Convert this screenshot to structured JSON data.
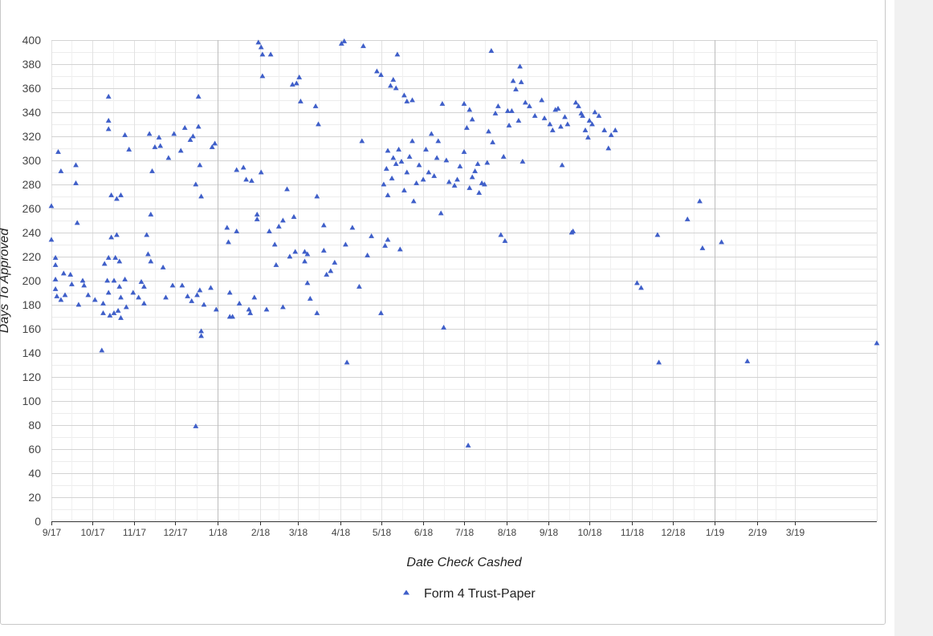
{
  "chart_data": {
    "type": "scatter",
    "xlabel": "Date Check Cashed",
    "ylabel": "Days To Approved",
    "ylim": [
      0,
      400
    ],
    "yticks": [
      0,
      20,
      40,
      60,
      80,
      100,
      120,
      140,
      160,
      180,
      200,
      220,
      240,
      260,
      280,
      300,
      320,
      340,
      360,
      380,
      400
    ],
    "xlim": [
      "2017-09-01",
      "2019-04-30"
    ],
    "xticks": [
      {
        "date": "2017-09-01",
        "label": "9/17"
      },
      {
        "date": "2017-10-01",
        "label": "10/17"
      },
      {
        "date": "2017-11-01",
        "label": "11/17"
      },
      {
        "date": "2017-12-01",
        "label": "12/17"
      },
      {
        "date": "2018-01-01",
        "label": "1/18"
      },
      {
        "date": "2018-02-01",
        "label": "2/18"
      },
      {
        "date": "2018-03-01",
        "label": "3/18"
      },
      {
        "date": "2018-04-01",
        "label": "4/18"
      },
      {
        "date": "2018-05-01",
        "label": "5/18"
      },
      {
        "date": "2018-06-01",
        "label": "6/18"
      },
      {
        "date": "2018-07-01",
        "label": "7/18"
      },
      {
        "date": "2018-08-01",
        "label": "8/18"
      },
      {
        "date": "2018-09-01",
        "label": "9/18"
      },
      {
        "date": "2018-10-01",
        "label": "10/18"
      },
      {
        "date": "2018-11-01",
        "label": "11/18"
      },
      {
        "date": "2018-12-01",
        "label": "12/18"
      },
      {
        "date": "2019-01-01",
        "label": "1/19"
      },
      {
        "date": "2019-02-01",
        "label": "2/19"
      },
      {
        "date": "2019-03-01",
        "label": "3/19"
      }
    ],
    "grid": true,
    "legend_position": "bottom",
    "series": [
      {
        "name": "Form 4 Trust-Paper",
        "color": "#3f5fc9",
        "marker": "triangle",
        "points": [
          [
            "2017-09-01",
            262
          ],
          [
            "2017-09-01",
            234
          ],
          [
            "2017-09-04",
            219
          ],
          [
            "2017-09-04",
            213
          ],
          [
            "2017-09-04",
            201
          ],
          [
            "2017-09-04",
            193
          ],
          [
            "2017-09-05",
            187
          ],
          [
            "2017-09-06",
            307
          ],
          [
            "2017-09-08",
            291
          ],
          [
            "2017-09-10",
            206
          ],
          [
            "2017-09-08",
            184
          ],
          [
            "2017-09-11",
            188
          ],
          [
            "2017-09-15",
            205
          ],
          [
            "2017-09-16",
            197
          ],
          [
            "2017-09-19",
            296
          ],
          [
            "2017-09-19",
            281
          ],
          [
            "2017-09-20",
            248
          ],
          [
            "2017-09-21",
            180
          ],
          [
            "2017-09-24",
            200
          ],
          [
            "2017-09-25",
            196
          ],
          [
            "2017-09-28",
            188
          ],
          [
            "2017-10-03",
            184
          ],
          [
            "2017-10-08",
            142
          ],
          [
            "2017-10-09",
            181
          ],
          [
            "2017-10-09",
            173
          ],
          [
            "2017-10-10",
            214
          ],
          [
            "2017-10-12",
            200
          ],
          [
            "2017-10-13",
            353
          ],
          [
            "2017-10-13",
            333
          ],
          [
            "2017-10-13",
            326
          ],
          [
            "2017-10-13",
            219
          ],
          [
            "2017-10-13",
            190
          ],
          [
            "2017-10-15",
            236
          ],
          [
            "2017-10-15",
            271
          ],
          [
            "2017-10-14",
            171
          ],
          [
            "2017-10-17",
            173
          ],
          [
            "2017-10-17",
            200
          ],
          [
            "2017-10-18",
            219
          ],
          [
            "2017-10-19",
            238
          ],
          [
            "2017-10-19",
            268
          ],
          [
            "2017-10-21",
            216
          ],
          [
            "2017-10-21",
            195
          ],
          [
            "2017-10-20",
            175
          ],
          [
            "2017-10-22",
            271
          ],
          [
            "2017-10-22",
            186
          ],
          [
            "2017-10-22",
            169
          ],
          [
            "2017-10-25",
            321
          ],
          [
            "2017-10-25",
            201
          ],
          [
            "2017-10-28",
            309
          ],
          [
            "2017-10-26",
            178
          ],
          [
            "2017-10-31",
            190
          ],
          [
            "2017-11-04",
            186
          ],
          [
            "2017-11-06",
            199
          ],
          [
            "2017-11-08",
            195
          ],
          [
            "2017-11-08",
            181
          ],
          [
            "2017-11-10",
            238
          ],
          [
            "2017-11-11",
            222
          ],
          [
            "2017-11-12",
            322
          ],
          [
            "2017-11-13",
            216
          ],
          [
            "2017-11-13",
            255
          ],
          [
            "2017-11-14",
            291
          ],
          [
            "2017-11-16",
            311
          ],
          [
            "2017-11-19",
            319
          ],
          [
            "2017-11-20",
            312
          ],
          [
            "2017-11-22",
            211
          ],
          [
            "2017-11-24",
            186
          ],
          [
            "2017-11-26",
            302
          ],
          [
            "2017-11-29",
            196
          ],
          [
            "2017-11-30",
            322
          ],
          [
            "2017-12-05",
            308
          ],
          [
            "2017-12-06",
            196
          ],
          [
            "2017-12-08",
            327
          ],
          [
            "2017-12-10",
            187
          ],
          [
            "2017-12-12",
            317
          ],
          [
            "2017-12-13",
            183
          ],
          [
            "2017-12-14",
            320
          ],
          [
            "2017-12-16",
            79
          ],
          [
            "2017-12-16",
            280
          ],
          [
            "2017-12-17",
            188
          ],
          [
            "2017-12-18",
            353
          ],
          [
            "2017-12-18",
            328
          ],
          [
            "2017-12-19",
            296
          ],
          [
            "2017-12-19",
            192
          ],
          [
            "2017-12-20",
            270
          ],
          [
            "2017-12-20",
            158
          ],
          [
            "2017-12-20",
            154
          ],
          [
            "2017-12-22",
            180
          ],
          [
            "2017-12-27",
            194
          ],
          [
            "2017-12-28",
            311
          ],
          [
            "2017-12-30",
            314
          ],
          [
            "2017-12-31",
            176
          ],
          [
            "2018-01-08",
            244
          ],
          [
            "2018-01-09",
            232
          ],
          [
            "2018-01-10",
            190
          ],
          [
            "2018-01-10",
            170
          ],
          [
            "2018-01-12",
            170
          ],
          [
            "2018-01-15",
            241
          ],
          [
            "2018-01-15",
            292
          ],
          [
            "2018-01-17",
            181
          ],
          [
            "2018-01-20",
            294
          ],
          [
            "2018-01-22",
            284
          ],
          [
            "2018-01-24",
            176
          ],
          [
            "2018-01-25",
            173
          ],
          [
            "2018-01-26",
            283
          ],
          [
            "2018-01-28",
            186
          ],
          [
            "2018-01-30",
            255
          ],
          [
            "2018-01-30",
            251
          ],
          [
            "2018-02-02",
            290
          ],
          [
            "2018-01-31",
            398
          ],
          [
            "2018-02-02",
            394
          ],
          [
            "2018-02-03",
            388
          ],
          [
            "2018-02-03",
            370
          ],
          [
            "2018-02-06",
            176
          ],
          [
            "2018-02-09",
            388
          ],
          [
            "2018-02-08",
            241
          ],
          [
            "2018-02-12",
            230
          ],
          [
            "2018-02-13",
            213
          ],
          [
            "2018-02-15",
            245
          ],
          [
            "2018-02-18",
            250
          ],
          [
            "2018-02-18",
            178
          ],
          [
            "2018-02-21",
            276
          ],
          [
            "2018-02-23",
            220
          ],
          [
            "2018-02-25",
            363
          ],
          [
            "2018-02-26",
            253
          ],
          [
            "2018-02-27",
            224
          ],
          [
            "2018-02-28",
            364
          ],
          [
            "2018-03-02",
            369
          ],
          [
            "2018-03-03",
            349
          ],
          [
            "2018-03-06",
            224
          ],
          [
            "2018-03-06",
            216
          ],
          [
            "2018-03-08",
            222
          ],
          [
            "2018-03-08",
            198
          ],
          [
            "2018-03-10",
            185
          ],
          [
            "2018-03-14",
            345
          ],
          [
            "2018-03-15",
            270
          ],
          [
            "2018-03-16",
            330
          ],
          [
            "2018-03-15",
            173
          ],
          [
            "2018-03-20",
            246
          ],
          [
            "2018-03-20",
            225
          ],
          [
            "2018-03-22",
            205
          ],
          [
            "2018-03-25",
            208
          ],
          [
            "2018-03-28",
            215
          ],
          [
            "2018-04-05",
            230
          ],
          [
            "2018-04-02",
            397
          ],
          [
            "2018-04-04",
            399
          ],
          [
            "2018-04-06",
            132
          ],
          [
            "2018-04-10",
            244
          ],
          [
            "2018-04-15",
            195
          ],
          [
            "2018-04-18",
            395
          ],
          [
            "2018-04-17",
            316
          ],
          [
            "2018-04-21",
            221
          ],
          [
            "2018-04-24",
            237
          ],
          [
            "2018-04-28",
            374
          ],
          [
            "2018-05-01",
            371
          ],
          [
            "2018-05-01",
            173
          ],
          [
            "2018-05-04",
            229
          ],
          [
            "2018-05-06",
            234
          ],
          [
            "2018-05-08",
            362
          ],
          [
            "2018-05-10",
            367
          ],
          [
            "2018-05-12",
            360
          ],
          [
            "2018-05-13",
            388
          ],
          [
            "2018-05-15",
            226
          ],
          [
            "2018-05-18",
            354
          ],
          [
            "2018-05-20",
            349
          ],
          [
            "2018-05-24",
            350
          ],
          [
            "2018-05-03",
            280
          ],
          [
            "2018-05-05",
            293
          ],
          [
            "2018-05-06",
            308
          ],
          [
            "2018-05-06",
            271
          ],
          [
            "2018-05-09",
            285
          ],
          [
            "2018-05-10",
            302
          ],
          [
            "2018-05-12",
            297
          ],
          [
            "2018-05-14",
            309
          ],
          [
            "2018-05-16",
            299
          ],
          [
            "2018-05-18",
            275
          ],
          [
            "2018-05-20",
            290
          ],
          [
            "2018-05-22",
            303
          ],
          [
            "2018-05-24",
            316
          ],
          [
            "2018-05-25",
            266
          ],
          [
            "2018-05-27",
            281
          ],
          [
            "2018-05-29",
            296
          ],
          [
            "2018-06-01",
            284
          ],
          [
            "2018-06-03",
            309
          ],
          [
            "2018-06-05",
            290
          ],
          [
            "2018-06-07",
            322
          ],
          [
            "2018-06-09",
            287
          ],
          [
            "2018-06-11",
            302
          ],
          [
            "2018-06-12",
            316
          ],
          [
            "2018-06-14",
            256
          ],
          [
            "2018-06-15",
            347
          ],
          [
            "2018-06-16",
            161
          ],
          [
            "2018-06-18",
            300
          ],
          [
            "2018-06-20",
            282
          ],
          [
            "2018-06-24",
            279
          ],
          [
            "2018-06-26",
            284
          ],
          [
            "2018-06-28",
            295
          ],
          [
            "2018-07-01",
            347
          ],
          [
            "2018-07-01",
            307
          ],
          [
            "2018-07-03",
            327
          ],
          [
            "2018-07-04",
            63
          ],
          [
            "2018-07-05",
            342
          ],
          [
            "2018-07-07",
            334
          ],
          [
            "2018-07-05",
            277
          ],
          [
            "2018-07-07",
            286
          ],
          [
            "2018-07-09",
            291
          ],
          [
            "2018-07-11",
            297
          ],
          [
            "2018-07-12",
            273
          ],
          [
            "2018-07-14",
            281
          ],
          [
            "2018-07-16",
            280
          ],
          [
            "2018-07-18",
            298
          ],
          [
            "2018-07-19",
            324
          ],
          [
            "2018-07-21",
            391
          ],
          [
            "2018-07-22",
            315
          ],
          [
            "2018-07-24",
            339
          ],
          [
            "2018-07-26",
            345
          ],
          [
            "2018-07-28",
            238
          ],
          [
            "2018-07-30",
            303
          ],
          [
            "2018-07-31",
            233
          ],
          [
            "2018-08-02",
            341
          ],
          [
            "2018-08-03",
            329
          ],
          [
            "2018-08-05",
            341
          ],
          [
            "2018-08-06",
            366
          ],
          [
            "2018-08-08",
            359
          ],
          [
            "2018-08-10",
            333
          ],
          [
            "2018-08-11",
            378
          ],
          [
            "2018-08-12",
            365
          ],
          [
            "2018-08-13",
            299
          ],
          [
            "2018-08-15",
            348
          ],
          [
            "2018-08-18",
            345
          ],
          [
            "2018-08-22",
            337
          ],
          [
            "2018-08-27",
            350
          ],
          [
            "2018-08-29",
            335
          ],
          [
            "2018-09-02",
            330
          ],
          [
            "2018-09-04",
            325
          ],
          [
            "2018-09-06",
            342
          ],
          [
            "2018-09-08",
            343
          ],
          [
            "2018-09-10",
            328
          ],
          [
            "2018-09-11",
            296
          ],
          [
            "2018-09-13",
            336
          ],
          [
            "2018-09-15",
            330
          ],
          [
            "2018-09-18",
            240
          ],
          [
            "2018-09-19",
            241
          ],
          [
            "2018-09-21",
            348
          ],
          [
            "2018-09-23",
            345
          ],
          [
            "2018-09-25",
            339
          ],
          [
            "2018-09-26",
            337
          ],
          [
            "2018-09-28",
            325
          ],
          [
            "2018-09-30",
            319
          ],
          [
            "2018-10-01",
            333
          ],
          [
            "2018-10-03",
            330
          ],
          [
            "2018-10-05",
            340
          ],
          [
            "2018-10-08",
            337
          ],
          [
            "2018-10-12",
            325
          ],
          [
            "2018-10-15",
            310
          ],
          [
            "2018-10-17",
            321
          ],
          [
            "2018-10-20",
            325
          ],
          [
            "2018-11-05",
            198
          ],
          [
            "2018-11-08",
            194
          ],
          [
            "2018-11-20",
            238
          ],
          [
            "2018-11-21",
            132
          ],
          [
            "2018-12-12",
            251
          ],
          [
            "2018-12-21",
            266
          ],
          [
            "2018-12-23",
            227
          ],
          [
            "2019-01-06",
            232
          ],
          [
            "2019-01-25",
            133
          ],
          [
            "2019-04-30",
            148
          ]
        ]
      }
    ]
  }
}
